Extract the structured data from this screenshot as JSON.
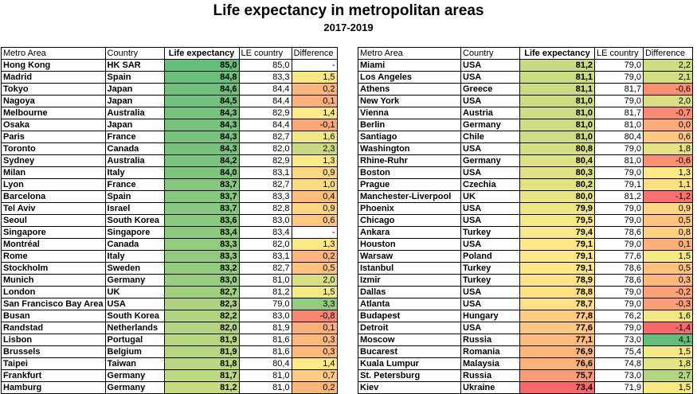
{
  "title": "Life expectancy in metropolitan areas",
  "subtitle": "2017-2019",
  "headers": {
    "metro": "Metro Area",
    "country": "Country",
    "life_expectancy": "Life expectancy",
    "le_country": "LE country",
    "difference": "Difference"
  },
  "left_rows": [
    {
      "metro": "Hong Kong",
      "country": "HK SAR",
      "le": "85,0",
      "lec": "85,0",
      "diff": "-"
    },
    {
      "metro": "Madrid",
      "country": "Spain",
      "le": "84,8",
      "lec": "83,3",
      "diff": "1,5"
    },
    {
      "metro": "Tokyo",
      "country": "Japan",
      "le": "84,6",
      "lec": "84,4",
      "diff": "0,2"
    },
    {
      "metro": "Nagoya",
      "country": "Japan",
      "le": "84,5",
      "lec": "84,4",
      "diff": "0,1"
    },
    {
      "metro": "Melbourne",
      "country": "Australia",
      "le": "84,3",
      "lec": "82,9",
      "diff": "1,4"
    },
    {
      "metro": "Osaka",
      "country": "Japan",
      "le": "84,3",
      "lec": "84,4",
      "diff": "-0,1"
    },
    {
      "metro": "Paris",
      "country": "France",
      "le": "84,3",
      "lec": "82,7",
      "diff": "1,6"
    },
    {
      "metro": "Toronto",
      "country": "Canada",
      "le": "84,3",
      "lec": "82,0",
      "diff": "2,3"
    },
    {
      "metro": "Sydney",
      "country": "Australia",
      "le": "84,2",
      "lec": "82,9",
      "diff": "1,3"
    },
    {
      "metro": "Milan",
      "country": "Italy",
      "le": "84,0",
      "lec": "83,1",
      "diff": "0,9"
    },
    {
      "metro": "Lyon",
      "country": "France",
      "le": "83,7",
      "lec": "82,7",
      "diff": "1,0"
    },
    {
      "metro": "Barcelona",
      "country": "Spain",
      "le": "83,7",
      "lec": "83,3",
      "diff": "0,4"
    },
    {
      "metro": "Tel Aviv",
      "country": "Israel",
      "le": "83,7",
      "lec": "82,8",
      "diff": "0,9"
    },
    {
      "metro": "Seoul",
      "country": "South Korea",
      "le": "83,6",
      "lec": "83,0",
      "diff": "0,6"
    },
    {
      "metro": "Singapore",
      "country": "Singapore",
      "le": "83,4",
      "lec": "83,4",
      "diff": "-"
    },
    {
      "metro": "Montréal",
      "country": "Canada",
      "le": "83,3",
      "lec": "82,0",
      "diff": "1,3"
    },
    {
      "metro": "Rome",
      "country": "Italy",
      "le": "83,3",
      "lec": "83,1",
      "diff": "0,2"
    },
    {
      "metro": "Stockholm",
      "country": "Sweden",
      "le": "83,2",
      "lec": "82,7",
      "diff": "0,5"
    },
    {
      "metro": "Munich",
      "country": "Germany",
      "le": "83,0",
      "lec": "81,0",
      "diff": "2,0"
    },
    {
      "metro": "London",
      "country": "UK",
      "le": "82,7",
      "lec": "81,2",
      "diff": "1,5"
    },
    {
      "metro": "San Francisco Bay Area",
      "country": "USA",
      "le": "82,3",
      "lec": "79,0",
      "diff": "3,3"
    },
    {
      "metro": "Busan",
      "country": "South Korea",
      "le": "82,2",
      "lec": "83,0",
      "diff": "-0,8"
    },
    {
      "metro": "Randstad",
      "country": "Netherlands",
      "le": "82,0",
      "lec": "81,9",
      "diff": "0,1"
    },
    {
      "metro": "Lisbon",
      "country": "Portugal",
      "le": "81,9",
      "lec": "81,6",
      "diff": "0,3"
    },
    {
      "metro": "Brussels",
      "country": "Belgium",
      "le": "81,9",
      "lec": "81,6",
      "diff": "0,3"
    },
    {
      "metro": "Taipei",
      "country": "Taiwan",
      "le": "81,8",
      "lec": "80,4",
      "diff": "1,4"
    },
    {
      "metro": "Frankfurt",
      "country": "Germany",
      "le": "81,7",
      "lec": "81,0",
      "diff": "0,7"
    },
    {
      "metro": "Hamburg",
      "country": "Germany",
      "le": "81,2",
      "lec": "81,0",
      "diff": "0,2"
    }
  ],
  "right_rows": [
    {
      "metro": "Miami",
      "country": "USA",
      "le": "81,2",
      "lec": "79,0",
      "diff": "2,2"
    },
    {
      "metro": "Los Angeles",
      "country": "USA",
      "le": "81,1",
      "lec": "79,0",
      "diff": "2,1"
    },
    {
      "metro": "Athens",
      "country": "Greece",
      "le": "81,1",
      "lec": "81,7",
      "diff": "-0,6"
    },
    {
      "metro": "New York",
      "country": "USA",
      "le": "81,0",
      "lec": "79,0",
      "diff": "2,0"
    },
    {
      "metro": "Vienna",
      "country": "Austria",
      "le": "81,0",
      "lec": "81,7",
      "diff": "-0,7"
    },
    {
      "metro": "Berlin",
      "country": "Germany",
      "le": "81,0",
      "lec": "81,0",
      "diff": "0,0"
    },
    {
      "metro": "Santiago",
      "country": "Chile",
      "le": "81,0",
      "lec": "80,4",
      "diff": "0,6"
    },
    {
      "metro": "Washington",
      "country": "USA",
      "le": "80,8",
      "lec": "79,0",
      "diff": "1,8"
    },
    {
      "metro": "Rhine-Ruhr",
      "country": "Germany",
      "le": "80,4",
      "lec": "81,0",
      "diff": "-0,6"
    },
    {
      "metro": "Boston",
      "country": "USA",
      "le": "80,3",
      "lec": "79,0",
      "diff": "1,3"
    },
    {
      "metro": "Prague",
      "country": "Czechia",
      "le": "80,2",
      "lec": "79,1",
      "diff": "1,1"
    },
    {
      "metro": "Manchester-Liverpool",
      "country": "UK",
      "le": "80,0",
      "lec": "81,2",
      "diff": "-1,2"
    },
    {
      "metro": "Phoenix",
      "country": "USA",
      "le": "79,9",
      "lec": "79,0",
      "diff": "0,9"
    },
    {
      "metro": "Chicago",
      "country": "USA",
      "le": "79,5",
      "lec": "79,0",
      "diff": "0,5"
    },
    {
      "metro": "Ankara",
      "country": "Turkey",
      "le": "79,4",
      "lec": "78,6",
      "diff": "0,8"
    },
    {
      "metro": "Houston",
      "country": "USA",
      "le": "79,1",
      "lec": "79,0",
      "diff": "0,1"
    },
    {
      "metro": "Warsaw",
      "country": "Poland",
      "le": "79,1",
      "lec": "77,6",
      "diff": "1,5"
    },
    {
      "metro": "Istanbul",
      "country": "Turkey",
      "le": "79,1",
      "lec": "78,6",
      "diff": "0,5"
    },
    {
      "metro": "Izmir",
      "country": "Turkey",
      "le": "78,9",
      "lec": "78,6",
      "diff": "0,3"
    },
    {
      "metro": "Dallas",
      "country": "USA",
      "le": "78,8",
      "lec": "79,0",
      "diff": "-0,2"
    },
    {
      "metro": "Atlanta",
      "country": "USA",
      "le": "78,7",
      "lec": "79,0",
      "diff": "-0,3"
    },
    {
      "metro": "Budapest",
      "country": "Hungary",
      "le": "77,8",
      "lec": "76,2",
      "diff": "1,6"
    },
    {
      "metro": "Detroit",
      "country": "USA",
      "le": "77,6",
      "lec": "79,0",
      "diff": "-1,4"
    },
    {
      "metro": "Moscow",
      "country": "Russia",
      "le": "77,1",
      "lec": "73,0",
      "diff": "4,1"
    },
    {
      "metro": "Bucarest",
      "country": "Romania",
      "le": "76,9",
      "lec": "75,4",
      "diff": "1,5"
    },
    {
      "metro": "Kuala Lumpur",
      "country": "Malaysia",
      "le": "76,6",
      "lec": "74,8",
      "diff": "1,8"
    },
    {
      "metro": "St. Petersburg",
      "country": "Russia",
      "le": "75,7",
      "lec": "73,0",
      "diff": "2,7"
    },
    {
      "metro": "Kiev",
      "country": "Ukraine",
      "le": "73,4",
      "lec": "71,9",
      "diff": "1,5"
    }
  ],
  "colors": {
    "le_scale": [
      "#f8696b",
      "#ffeb84",
      "#63be7b"
    ],
    "diff_scale": [
      "#f8696b",
      "#ffeb84",
      "#63be7b"
    ]
  }
}
